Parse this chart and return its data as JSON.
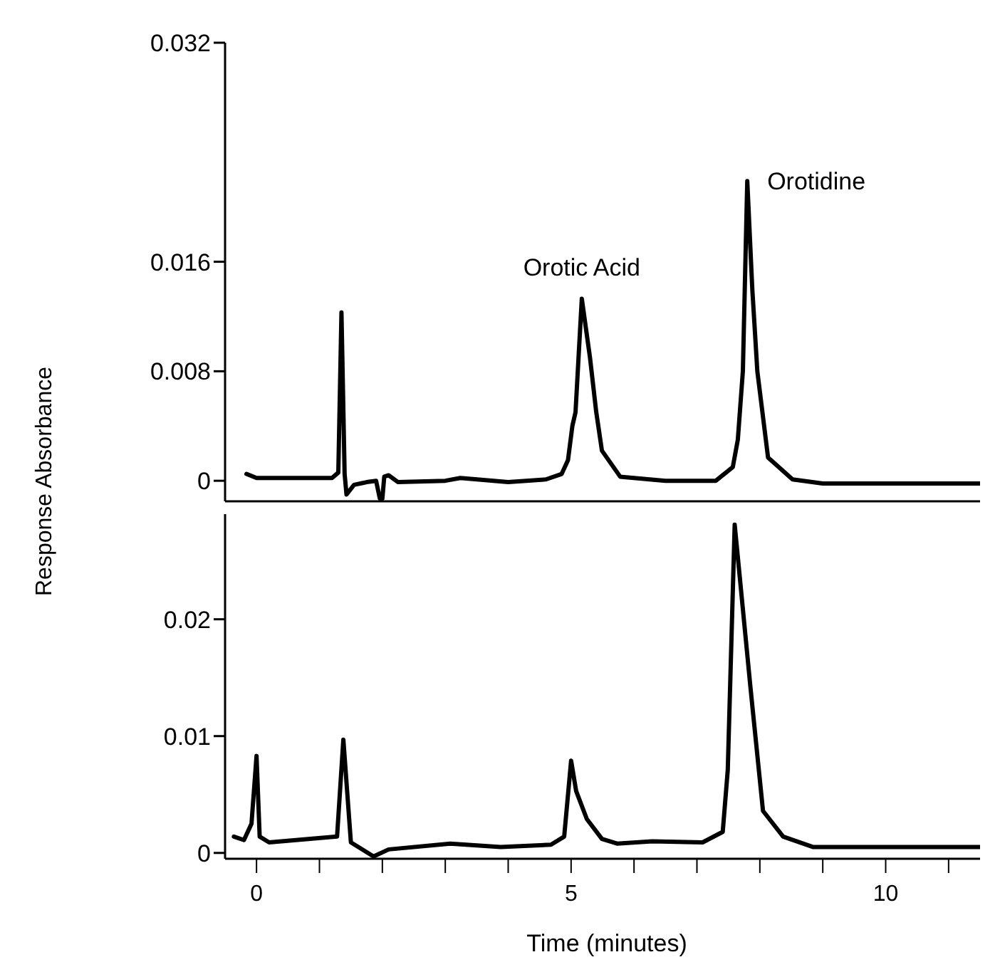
{
  "chart_data": [
    {
      "type": "line",
      "ylabel": "Response Absorbance",
      "xlim": [
        -0.5,
        11.5
      ],
      "ylim": [
        -0.0015,
        0.032
      ],
      "yticks": [
        0,
        0.008,
        0.016,
        0.032
      ],
      "tick_labels": "y",
      "marker": "none",
      "line_style": "solid",
      "series": [
        {
          "color": "#000000",
          "x": [
            -0.16,
            0,
            1.2,
            1.3,
            1.35,
            1.4,
            1.43,
            1.55,
            1.75,
            1.9,
            1.96,
            2,
            2.03,
            2.1,
            2.25,
            3,
            3.24,
            4,
            4.6,
            4.85,
            4.95,
            5.02,
            5.07,
            5.17,
            5.3,
            5.4,
            5.49,
            5.78,
            6.5,
            7.3,
            7.57,
            7.65,
            7.73,
            7.8,
            7.88,
            7.96,
            8.13,
            8.52,
            9,
            11.5
          ],
          "values": [
            0.0005,
            0.0002,
            0.0002,
            0.0006,
            0.0123,
            0.0005,
            -0.001,
            -0.0003,
            -0.0001,
            0,
            -0.0013,
            -0.0013,
            0.0003,
            0.0004,
            -0.0001,
            0,
            0.0002,
            -0.0001,
            0.0001,
            0.0005,
            0.0015,
            0.004,
            0.005,
            0.0133,
            0.009,
            0.005,
            0.0022,
            0.0003,
            0,
            0,
            0.001,
            0.003,
            0.008,
            0.0219,
            0.014,
            0.008,
            0.0017,
            0.0001,
            -0.0002,
            -0.0002
          ]
        }
      ],
      "annotations": [
        {
          "text": "Orotic Acid",
          "x": 5.17,
          "y": 0.0133
        },
        {
          "text": "Orotidine",
          "x": 7.8,
          "y": 0.0219
        }
      ]
    },
    {
      "type": "line",
      "xlabel": "Time (minutes)",
      "xlim": [
        -0.5,
        11.5
      ],
      "xticks": [
        0,
        {
          "value": 1,
          "label": null
        },
        {
          "value": 2,
          "label": null
        },
        {
          "value": 3,
          "label": null
        },
        {
          "value": 4,
          "label": null
        },
        5,
        {
          "value": 6,
          "label": null
        },
        {
          "value": 7,
          "label": null
        },
        {
          "value": 8,
          "label": null
        },
        {
          "value": 9,
          "label": null
        },
        10,
        {
          "value": 11,
          "label": null
        }
      ],
      "ylim": [
        -0.0005,
        0.029
      ],
      "yticks": [
        0,
        {
          "value": 0.01,
          "label": "0.01"
        },
        {
          "value": 0.02,
          "label": "0.02"
        }
      ],
      "marker": "none",
      "line_style": "solid",
      "series": [
        {
          "color": "#000000",
          "x": [
            -0.36,
            -0.2,
            -0.08,
            0,
            0.05,
            0.2,
            1.28,
            1.38,
            1.5,
            1.86,
            2.1,
            3.08,
            3.88,
            4.68,
            4.89,
            5,
            5.08,
            5.25,
            5.49,
            5.73,
            6.29,
            7.09,
            7.41,
            7.49,
            7.6,
            7.85,
            8.05,
            8.37,
            8.85,
            11.5
          ],
          "values": [
            0.0014,
            0.0011,
            0.0025,
            0.0083,
            0.0014,
            0.0009,
            0.0014,
            0.0097,
            0.0009,
            -0.0003,
            0.0003,
            0.0008,
            0.0005,
            0.0007,
            0.0014,
            0.0079,
            0.0053,
            0.0029,
            0.0012,
            0.0008,
            0.001,
            0.0009,
            0.0018,
            0.0071,
            0.0281,
            0.0142,
            0.0036,
            0.0014,
            0.0005,
            0.0005
          ]
        }
      ]
    }
  ]
}
